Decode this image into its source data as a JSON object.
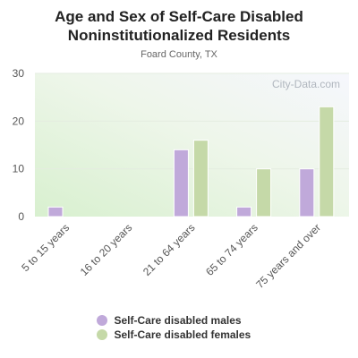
{
  "chart_data": {
    "type": "bar",
    "title_line1": "Age and Sex of Self-Care Disabled",
    "title_line2": "Noninstitutionalized Residents",
    "subtitle": "Foard County, TX",
    "watermark": "City-Data.com",
    "categories": [
      "5 to 15 years",
      "16 to 20 years",
      "21 to 64 years",
      "65 to 74 years",
      "75 years and over"
    ],
    "series": [
      {
        "name": "Self-Care disabled males",
        "values": [
          2,
          0,
          14,
          2,
          10
        ],
        "color": "#c0a9da"
      },
      {
        "name": "Self-Care disabled females",
        "values": [
          0,
          0,
          16,
          10,
          23
        ],
        "color": "#c5d9a8"
      }
    ],
    "ylim": [
      0,
      30
    ],
    "yticks": [
      0,
      10,
      20,
      30
    ],
    "grid": true,
    "legend_position": "bottom"
  }
}
